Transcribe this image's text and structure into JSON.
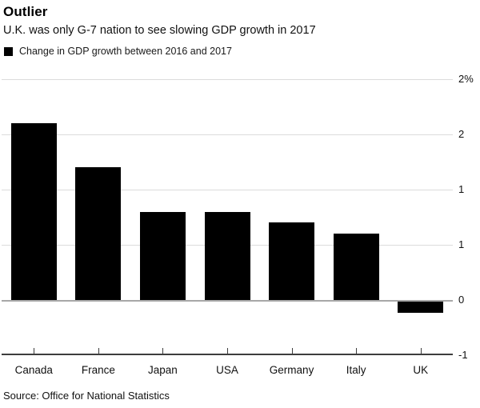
{
  "header": {
    "title": "Outlier",
    "subtitle": "U.K. was only G-7 nation to see slowing GDP growth in 2017"
  },
  "legend": {
    "swatch_color": "#000000",
    "label": "Change in GDP growth between 2016 and 2017"
  },
  "chart_data": {
    "type": "bar",
    "title": "Outlier",
    "subtitle": "U.K. was only G-7 nation to see slowing GDP growth in 2017",
    "series_label": "Change in GDP growth between 2016 and 2017",
    "categories": [
      "Canada",
      "France",
      "Japan",
      "USA",
      "Germany",
      "Italy",
      "UK"
    ],
    "values": [
      1.6,
      1.2,
      0.8,
      0.8,
      0.7,
      0.6,
      -0.1
    ],
    "unit": "%",
    "ylim": [
      -0.5,
      2.0
    ],
    "ytick_values": [
      2.0,
      1.5,
      1.0,
      0.5,
      0.0,
      -0.5
    ],
    "ytick_labels": [
      "2%",
      "2",
      "1",
      "1",
      "0",
      "-1"
    ],
    "grid": true,
    "legend_position": "top-left",
    "colors": {
      "bar": "#000000",
      "gridline": "#dcdcdc",
      "zero_line": "#a8a8a8",
      "axis_line": "#3d3d3d",
      "text": "#000000"
    }
  },
  "footer": {
    "source": "Source: Office for National Statistics"
  }
}
